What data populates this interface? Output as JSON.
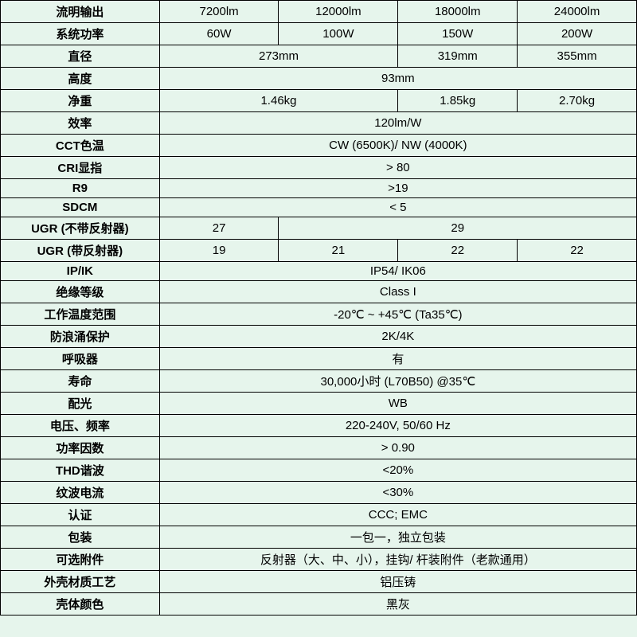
{
  "colors": {
    "bg": "#e6f5ec",
    "border": "#000000",
    "text": "#000000"
  },
  "table": {
    "rows": [
      {
        "label": "流明输出",
        "cells": [
          {
            "v": "7200lm",
            "span": 1
          },
          {
            "v": "12000lm",
            "span": 1
          },
          {
            "v": "18000lm",
            "span": 1
          },
          {
            "v": "24000lm",
            "span": 1
          }
        ]
      },
      {
        "label": "系统功率",
        "cells": [
          {
            "v": "60W",
            "span": 1
          },
          {
            "v": "100W",
            "span": 1
          },
          {
            "v": "150W",
            "span": 1
          },
          {
            "v": "200W",
            "span": 1
          }
        ]
      },
      {
        "label": "直径",
        "cells": [
          {
            "v": "273mm",
            "span": 2
          },
          {
            "v": "319mm",
            "span": 1
          },
          {
            "v": "355mm",
            "span": 1
          }
        ]
      },
      {
        "label": "高度",
        "cells": [
          {
            "v": "93mm",
            "span": 4
          }
        ]
      },
      {
        "label": "净重",
        "cells": [
          {
            "v": "1.46kg",
            "span": 2
          },
          {
            "v": "1.85kg",
            "span": 1
          },
          {
            "v": "2.70kg",
            "span": 1
          }
        ]
      },
      {
        "label": "效率",
        "cells": [
          {
            "v": "120lm/W",
            "span": 4
          }
        ]
      },
      {
        "label": "CCT色温",
        "cells": [
          {
            "v": "CW (6500K)/ NW (4000K)",
            "span": 4
          }
        ]
      },
      {
        "label": "CRI显指",
        "cells": [
          {
            "v": "> 80",
            "span": 4
          }
        ]
      },
      {
        "label": "R9",
        "cells": [
          {
            "v": ">19",
            "span": 4
          }
        ]
      },
      {
        "label": "SDCM",
        "cells": [
          {
            "v": "< 5",
            "span": 4
          }
        ]
      },
      {
        "label": "UGR (不带反射器)",
        "cells": [
          {
            "v": "27",
            "span": 1
          },
          {
            "v": "29",
            "span": 3
          }
        ]
      },
      {
        "label": "UGR (带反射器)",
        "cells": [
          {
            "v": "19",
            "span": 1
          },
          {
            "v": "21",
            "span": 1
          },
          {
            "v": "22",
            "span": 1
          },
          {
            "v": "22",
            "span": 1
          }
        ]
      },
      {
        "label": "IP/IK",
        "cells": [
          {
            "v": "IP54/ IK06",
            "span": 4
          }
        ]
      },
      {
        "label": "绝缘等级",
        "cells": [
          {
            "v": "Class I",
            "span": 4
          }
        ]
      },
      {
        "label": "工作温度范围",
        "cells": [
          {
            "v": "-20℃ ~ +45℃ (Ta35℃)",
            "span": 4
          }
        ]
      },
      {
        "label": "防浪涌保护",
        "cells": [
          {
            "v": "2K/4K",
            "span": 4
          }
        ]
      },
      {
        "label": "呼吸器",
        "cells": [
          {
            "v": "有",
            "span": 4
          }
        ]
      },
      {
        "label": "寿命",
        "cells": [
          {
            "v": "30,000小时 (L70B50) @35℃",
            "span": 4
          }
        ]
      },
      {
        "label": "配光",
        "cells": [
          {
            "v": "WB",
            "span": 4
          }
        ]
      },
      {
        "label": "电压、频率",
        "cells": [
          {
            "v": "220-240V, 50/60 Hz",
            "span": 4
          }
        ]
      },
      {
        "label": "功率因数",
        "cells": [
          {
            "v": "> 0.90",
            "span": 4
          }
        ]
      },
      {
        "label": "THD谐波",
        "cells": [
          {
            "v": "<20%",
            "span": 4
          }
        ]
      },
      {
        "label": "纹波电流",
        "cells": [
          {
            "v": "<30%",
            "span": 4
          }
        ]
      },
      {
        "label": "认证",
        "cells": [
          {
            "v": "CCC; EMC",
            "span": 4
          }
        ]
      },
      {
        "label": "包装",
        "cells": [
          {
            "v": "一包一，独立包装",
            "span": 4
          }
        ]
      },
      {
        "label": "可选附件",
        "cells": [
          {
            "v": "反射器（大、中、小），挂钩/ 杆装附件（老款通用）",
            "span": 4
          }
        ]
      },
      {
        "label": "外壳材质工艺",
        "cells": [
          {
            "v": "铝压铸",
            "span": 4
          }
        ]
      },
      {
        "label": "壳体颜色",
        "cells": [
          {
            "v": "黑灰",
            "span": 4
          }
        ]
      }
    ]
  }
}
